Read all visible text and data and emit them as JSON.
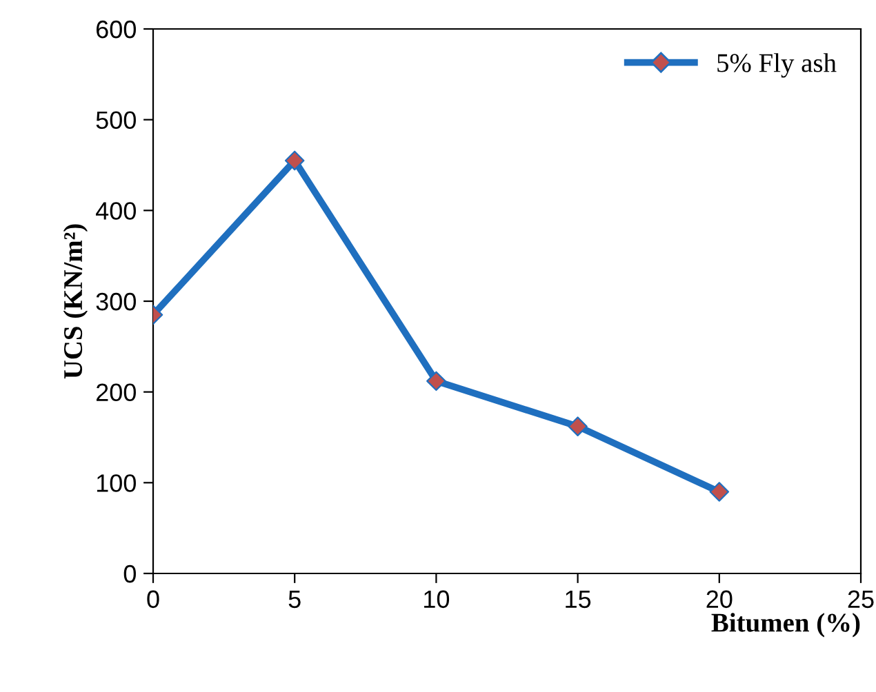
{
  "chart_data": {
    "type": "line",
    "xlabel": "Bitumen (%)",
    "ylabel": "UCS (KN/m²)",
    "x": [
      0,
      5,
      10,
      15,
      20
    ],
    "series": [
      {
        "name": "5% Fly ash",
        "color": "#1f6fbf",
        "colors": [
          "#c0504d",
          "#c0504d",
          "#c0504d",
          "#c0504d",
          "#c0504d"
        ],
        "values": [
          285,
          455,
          212,
          162,
          90
        ]
      }
    ],
    "xlim": [
      0,
      25
    ],
    "xticks": [
      0,
      5,
      10,
      15,
      20,
      25
    ],
    "ylim": [
      0,
      600
    ],
    "yticks": [
      0,
      100,
      200,
      300,
      400,
      500,
      600
    ],
    "grid": false,
    "legend": "top right",
    "marker": "diamond",
    "line_style": "solid"
  }
}
